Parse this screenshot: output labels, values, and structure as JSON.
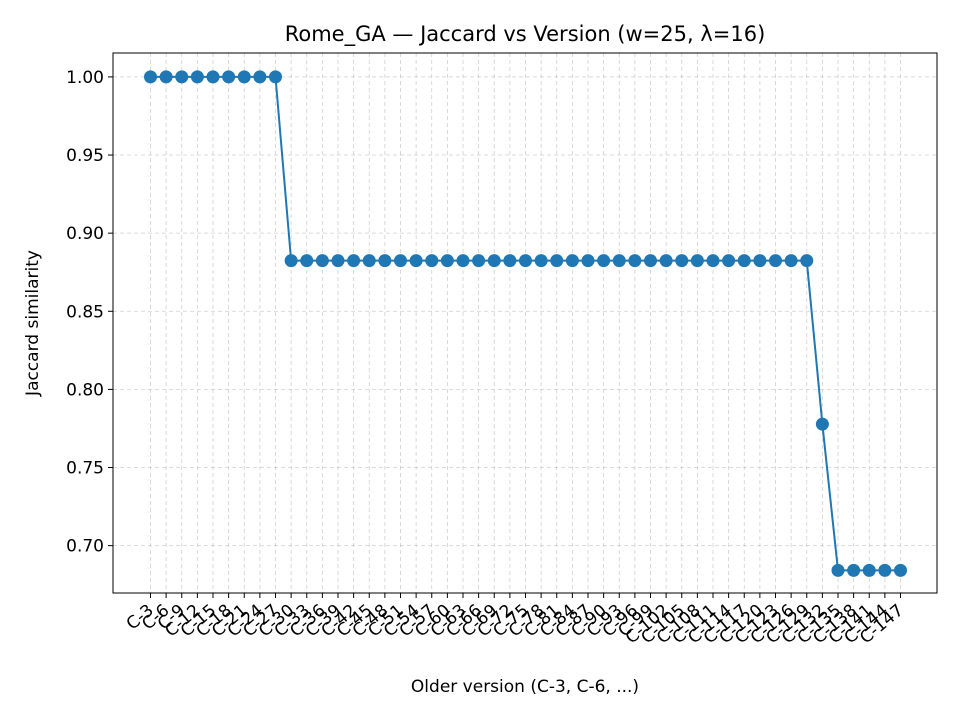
{
  "chart_data": {
    "type": "line",
    "title": "Rome_GA — Jaccard vs Version (w=25, λ=16)",
    "xlabel": "Older version (C-3, C-6, ...)",
    "ylabel": "Jaccard similarity",
    "ylim": [
      0.6697,
      1.0153
    ],
    "y_ticks": [
      0.7,
      0.75,
      0.8,
      0.85,
      0.9,
      0.95,
      1.0
    ],
    "y_tick_labels": [
      "0.70",
      "0.75",
      "0.80",
      "0.85",
      "0.90",
      "0.95",
      "1.00"
    ],
    "grid": true,
    "categories": [
      "C-3",
      "C-6",
      "C-9",
      "C-12",
      "C-15",
      "C-18",
      "C-21",
      "C-24",
      "C-27",
      "C-30",
      "C-33",
      "C-36",
      "C-39",
      "C-42",
      "C-45",
      "C-48",
      "C-51",
      "C-54",
      "C-57",
      "C-60",
      "C-63",
      "C-66",
      "C-69",
      "C-72",
      "C-75",
      "C-78",
      "C-81",
      "C-84",
      "C-87",
      "C-90",
      "C-93",
      "C-96",
      "C-99",
      "C-102",
      "C-105",
      "C-108",
      "C-111",
      "C-114",
      "C-117",
      "C-120",
      "C-123",
      "C-126",
      "C-129",
      "C-132",
      "C-135",
      "C-138",
      "C-141",
      "C-144",
      "C-147"
    ],
    "series": [
      {
        "color": "#1f77b4",
        "values": [
          1.0,
          1.0,
          1.0,
          1.0,
          1.0,
          1.0,
          1.0,
          1.0,
          1.0,
          0.8824,
          0.8824,
          0.8824,
          0.8824,
          0.8824,
          0.8824,
          0.8824,
          0.8824,
          0.8824,
          0.8824,
          0.8824,
          0.8824,
          0.8824,
          0.8824,
          0.8824,
          0.8824,
          0.8824,
          0.8824,
          0.8824,
          0.8824,
          0.8824,
          0.8824,
          0.8824,
          0.8824,
          0.8824,
          0.8824,
          0.8824,
          0.8824,
          0.8824,
          0.8824,
          0.8824,
          0.8824,
          0.8824,
          0.8824,
          0.7778,
          0.6842,
          0.6842,
          0.6842,
          0.6842,
          0.6842
        ]
      }
    ]
  }
}
